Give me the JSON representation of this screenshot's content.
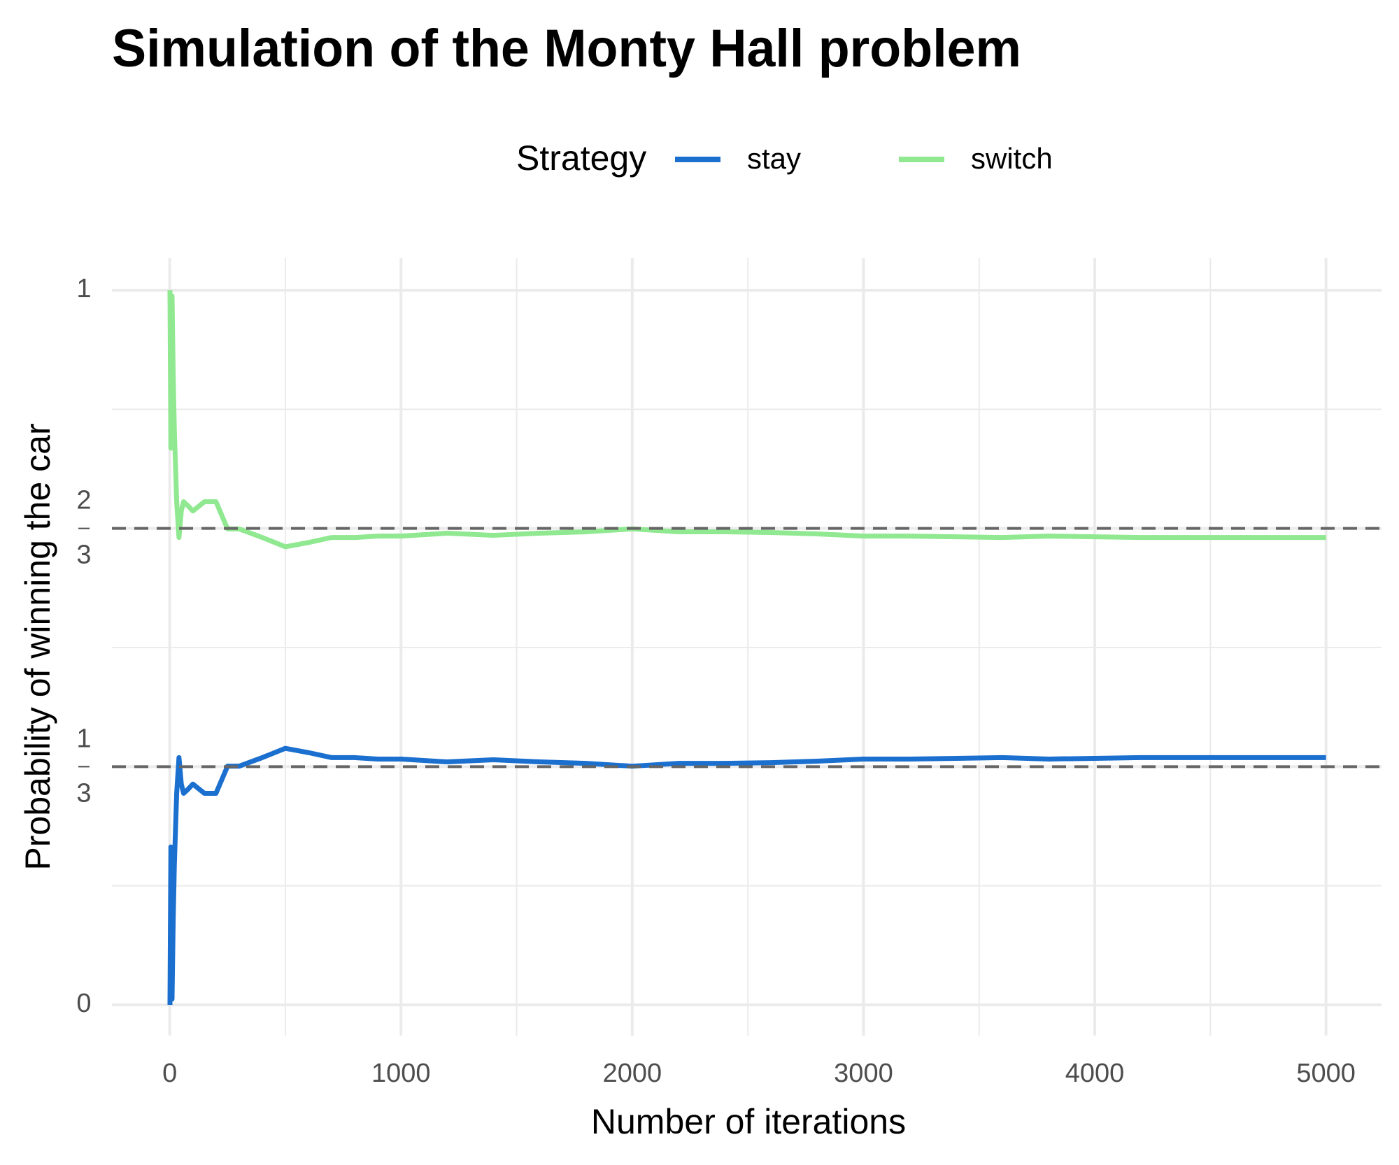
{
  "chart_data": {
    "type": "line",
    "title": "Simulation of the Monty Hall problem",
    "legend_title": "Strategy",
    "legend_position": "top",
    "xlabel": "Number of iterations",
    "ylabel": "Probability of winning the car",
    "x": [
      1,
      5,
      10,
      15,
      20,
      30,
      40,
      50,
      60,
      80,
      100,
      150,
      200,
      250,
      300,
      400,
      500,
      600,
      700,
      800,
      900,
      1000,
      1200,
      1400,
      1600,
      1800,
      2000,
      2200,
      2400,
      2600,
      2800,
      3000,
      3200,
      3400,
      3600,
      3800,
      4000,
      4200,
      4400,
      4600,
      4800,
      5000
    ],
    "series": [
      {
        "name": "stay",
        "color": "#1a6fcf",
        "values": [
          0,
          0.221,
          0.008,
          0.12,
          0.196,
          0.296,
          0.346,
          0.309,
          0.296,
          0.302,
          0.309,
          0.296,
          0.296,
          0.334,
          0.334,
          0.346,
          0.359,
          0.353,
          0.346,
          0.346,
          0.344,
          0.344,
          0.34,
          0.343,
          0.34,
          0.338,
          0.334,
          0.338,
          0.338,
          0.339,
          0.341,
          0.344,
          0.344,
          0.345,
          0.346,
          0.344,
          0.345,
          0.346,
          0.346,
          0.346,
          0.346,
          0.346
        ]
      },
      {
        "name": "switch",
        "color": "#90e890",
        "values": [
          1,
          0.779,
          0.992,
          0.88,
          0.804,
          0.704,
          0.654,
          0.691,
          0.704,
          0.698,
          0.691,
          0.704,
          0.704,
          0.666,
          0.666,
          0.654,
          0.641,
          0.647,
          0.654,
          0.654,
          0.656,
          0.656,
          0.66,
          0.657,
          0.66,
          0.662,
          0.666,
          0.662,
          0.662,
          0.661,
          0.659,
          0.656,
          0.656,
          0.655,
          0.654,
          0.656,
          0.655,
          0.654,
          0.654,
          0.654,
          0.654,
          0.654
        ]
      }
    ],
    "xlim": [
      -250,
      5240
    ],
    "xticks": [
      0,
      1000,
      2000,
      3000,
      4000,
      5000
    ],
    "x_minor_ticks": [
      500,
      1500,
      2500,
      3500,
      4500
    ],
    "ylim": [
      -0.043,
      1.045
    ],
    "yticks": [
      0,
      {
        "value": 0.3333,
        "label": {
          "num": "1",
          "den": "3"
        }
      },
      {
        "value": 0.6667,
        "label": {
          "num": "2",
          "den": "3"
        }
      },
      1
    ],
    "y_minor_ticks": [
      0.1667,
      0.5,
      0.8333
    ],
    "hlines": [
      0.3333,
      0.6667
    ],
    "hline_color": "#666666",
    "grid": true
  }
}
